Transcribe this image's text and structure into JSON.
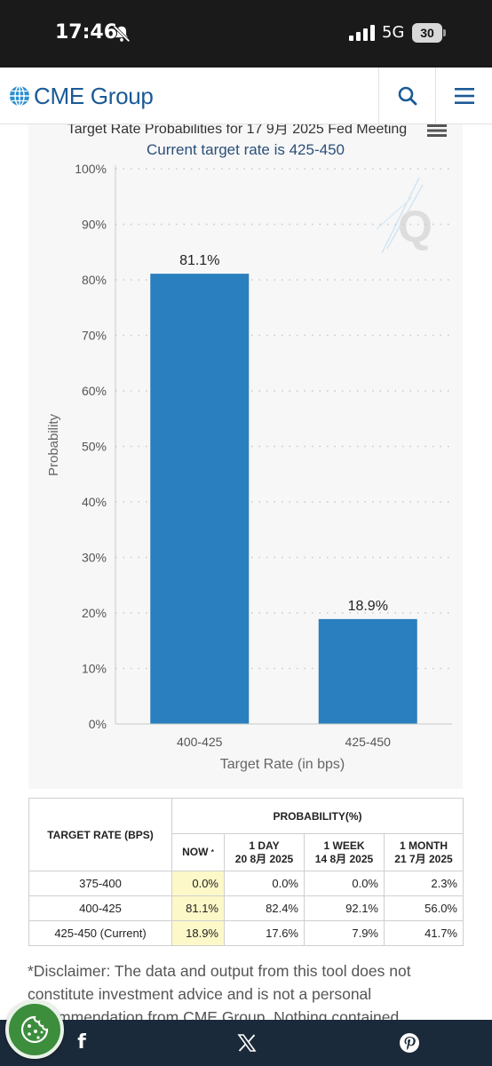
{
  "status_bar": {
    "time": "17:46",
    "network": "5G",
    "battery": "30"
  },
  "header": {
    "logo_text": "CME Group"
  },
  "chart": {
    "title": "Target Rate Probabilities for 17 9月 2025 Fed Meeting",
    "subtitle": "Current target rate is 425-450",
    "watermark": "Q"
  },
  "chart_data": {
    "type": "bar",
    "title": "Target Rate Probabilities for 17 9月 2025 Fed Meeting",
    "subtitle": "Current target rate is 425-450",
    "categories": [
      "400-425",
      "425-450"
    ],
    "values": [
      81.1,
      18.9
    ],
    "data_labels": [
      "81.1%",
      "18.9%"
    ],
    "xlabel": "Target Rate (in bps)",
    "ylabel": "Probability",
    "ylim": [
      0,
      100
    ],
    "yticks": [
      "0%",
      "10%",
      "20%",
      "30%",
      "40%",
      "50%",
      "60%",
      "70%",
      "80%",
      "90%",
      "100%"
    ],
    "grid": true,
    "bar_color": "#2a7fbe"
  },
  "table": {
    "col_target": "TARGET RATE (BPS)",
    "col_prob": "PROBABILITY(%)",
    "sub_now": "NOW",
    "sub_now_mark": "*",
    "sub_1day": "1 DAY",
    "sub_1day_date": "20 8月 2025",
    "sub_1week": "1 WEEK",
    "sub_1week_date": "14 8月 2025",
    "sub_1month": "1 MONTH",
    "sub_1month_date": "21 7月 2025",
    "rows": [
      {
        "rate": "375-400",
        "now": "0.0%",
        "day": "0.0%",
        "week": "0.0%",
        "month": "2.3%"
      },
      {
        "rate": "400-425",
        "now": "81.1%",
        "day": "82.4%",
        "week": "92.1%",
        "month": "56.0%"
      },
      {
        "rate": "425-450 (Current)",
        "now": "18.9%",
        "day": "17.6%",
        "week": "7.9%",
        "month": "41.7%"
      }
    ]
  },
  "disclaimer": "*Disclaimer: The data and output from this tool does not constitute investment advice and is not a personal recommendation from CME Group. Nothing contained",
  "colors": {
    "brand": "#1a5a96",
    "bar": "#2a7fbe",
    "share_bar": "#1b2a3a",
    "now_highlight": "#fdf8c8"
  }
}
